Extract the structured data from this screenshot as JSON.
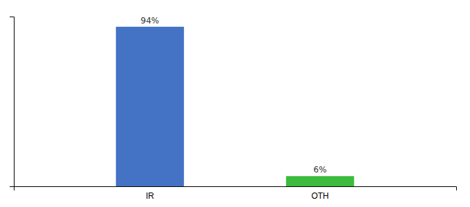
{
  "chart_data": {
    "type": "bar",
    "categories": [
      "IR",
      "OTH"
    ],
    "values": [
      94,
      6
    ],
    "value_labels": [
      "94%",
      "6%"
    ],
    "colors": [
      "#4472c4",
      "#3dbb3d"
    ],
    "ylim": [
      0,
      100
    ],
    "yticks": [],
    "data_labels": true,
    "tick_labels": "x"
  }
}
